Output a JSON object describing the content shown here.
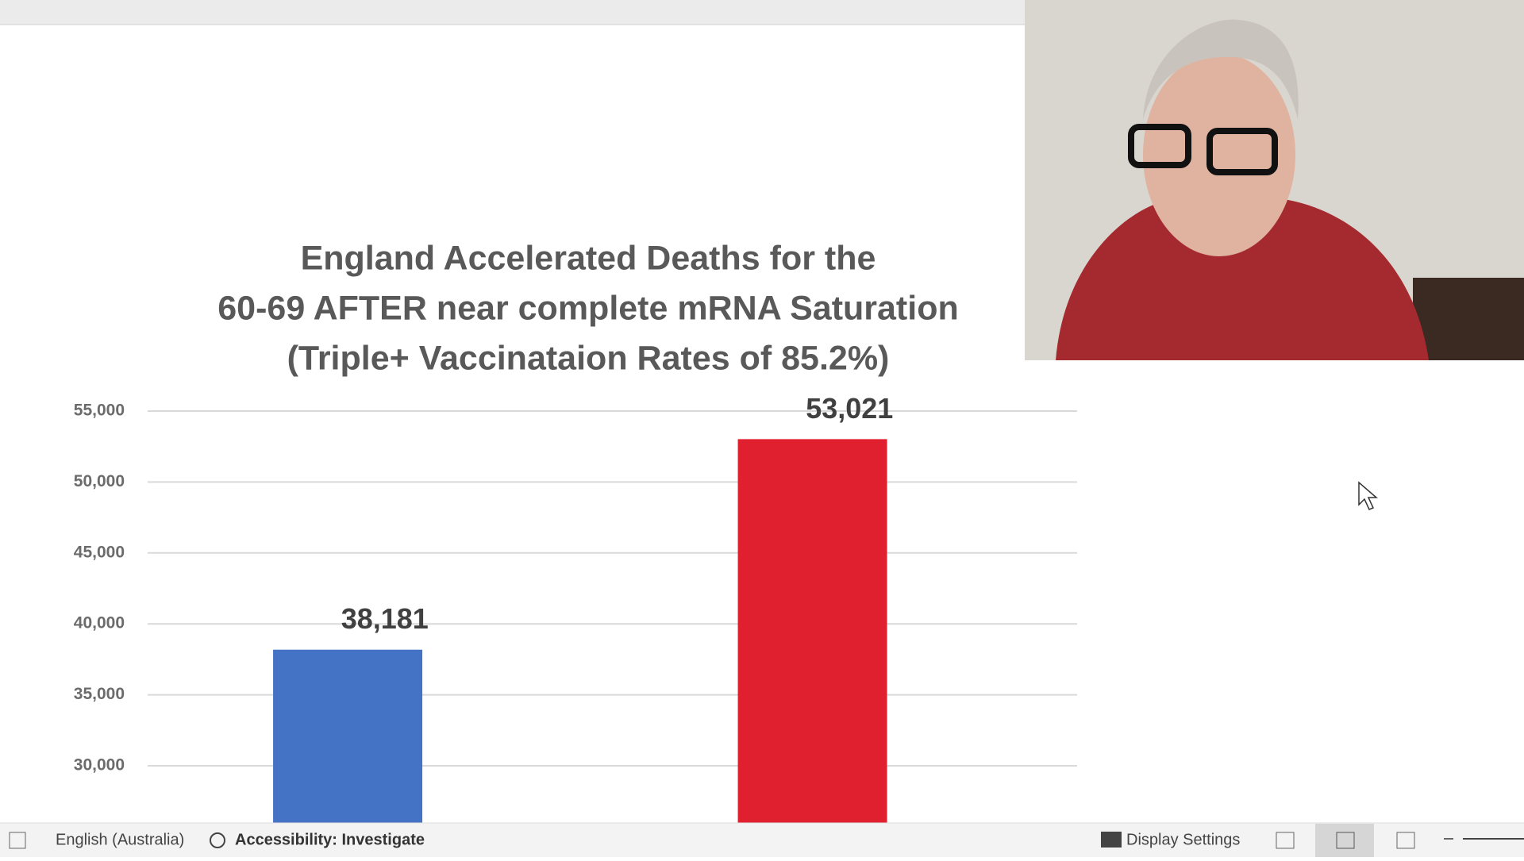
{
  "chart_data": {
    "type": "bar",
    "title": [
      "England Accelerated Deaths for the",
      "60-69 AFTER near complete mRNA Saturation",
      "(Triple+ Vaccinataion Rates of 85.2%)"
    ],
    "categories": [
      null,
      null
    ],
    "values": [
      38181,
      53021
    ],
    "value_labels": [
      "38,181",
      "53,021"
    ],
    "colors": [
      "#4472c4",
      "#e0202f"
    ],
    "ylim": [
      26000,
      55000
    ],
    "yticks": [
      {
        "value": 30000,
        "label": "30,000"
      },
      {
        "value": 35000,
        "label": "35,000"
      },
      {
        "value": 40000,
        "label": "40,000"
      },
      {
        "value": 45000,
        "label": "45,000"
      },
      {
        "value": 50000,
        "label": "50,000"
      },
      {
        "value": 55000,
        "label": "55,000"
      }
    ],
    "grid": true
  },
  "status_bar": {
    "language": "English (Australia)",
    "accessibility": "Accessibility: Investigate",
    "display_settings": "Display Settings"
  }
}
